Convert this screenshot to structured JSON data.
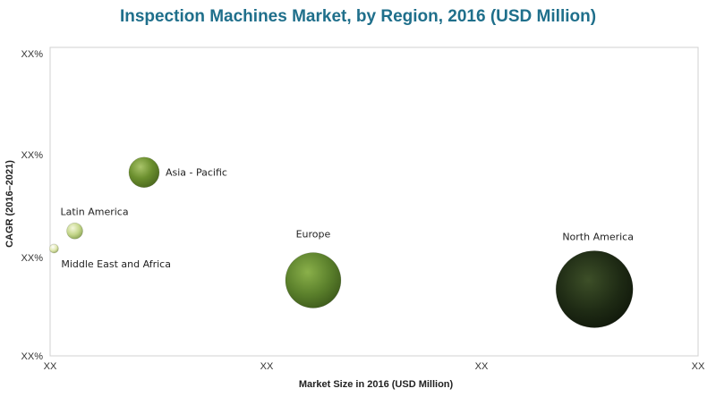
{
  "chart_data": {
    "type": "scatter",
    "title": "Inspection Machines Market, by Region, 2016 (USD Million)",
    "xlabel": "Market Size in 2016 (USD Million)",
    "ylabel": "CAGR (2016–2021)",
    "x_tick_labels": [
      "XX",
      "XX",
      "XX",
      "XX"
    ],
    "y_tick_labels": [
      "XX%",
      "XX%",
      "XX%",
      "XX%"
    ],
    "xlim": [
      0,
      100
    ],
    "ylim": [
      0,
      100
    ],
    "grid": false,
    "points": [
      {
        "label": "Asia - Pacific",
        "x": 14.5,
        "y": 59.5,
        "size": 17,
        "color": "#6b8f2e"
      },
      {
        "label": "Latin America",
        "x": 3.8,
        "y": 40.5,
        "size": 9,
        "color": "#c4d68a"
      },
      {
        "label": "Middle East and Africa",
        "x": 0.6,
        "y": 34.8,
        "size": 5,
        "color": "#e0e8b0"
      },
      {
        "label": "Europe",
        "x": 40.6,
        "y": 24.5,
        "size": 31,
        "color": "#5a7f2b"
      },
      {
        "label": "North America",
        "x": 84.0,
        "y": 21.6,
        "size": 43,
        "color": "#1e2a14"
      }
    ]
  }
}
